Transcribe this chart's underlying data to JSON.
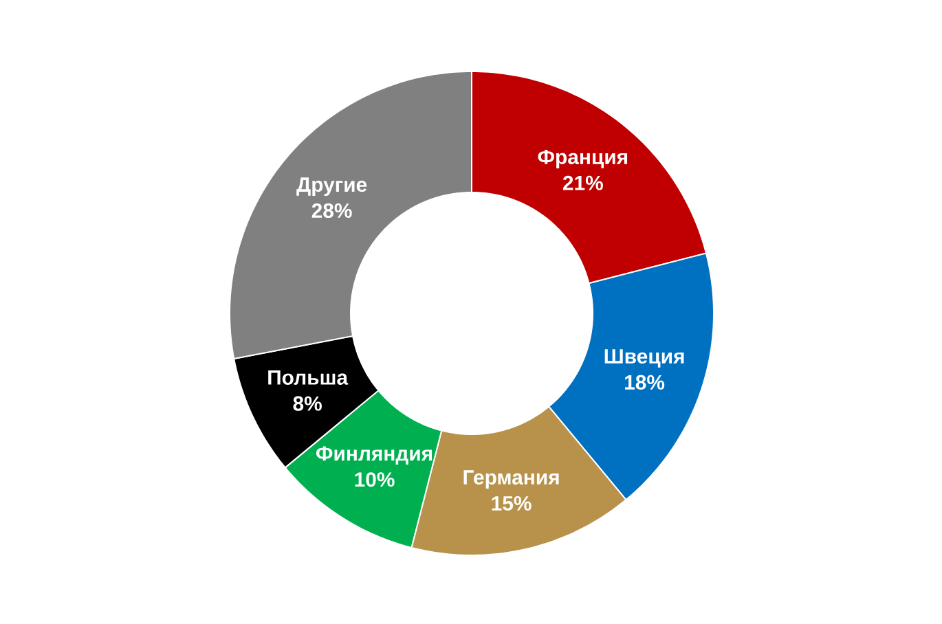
{
  "chart_data": {
    "type": "donut",
    "categories": [
      "Франция",
      "Швеция",
      "Германия",
      "Финляндия",
      "Польша",
      "Другие"
    ],
    "values": [
      21,
      18,
      15,
      10,
      8,
      28
    ],
    "value_labels": [
      "21%",
      "18%",
      "15%",
      "10%",
      "8%",
      "28%"
    ],
    "colors": [
      "#c00000",
      "#0070c0",
      "#b8924a",
      "#00b050",
      "#000000",
      "#808080"
    ]
  }
}
